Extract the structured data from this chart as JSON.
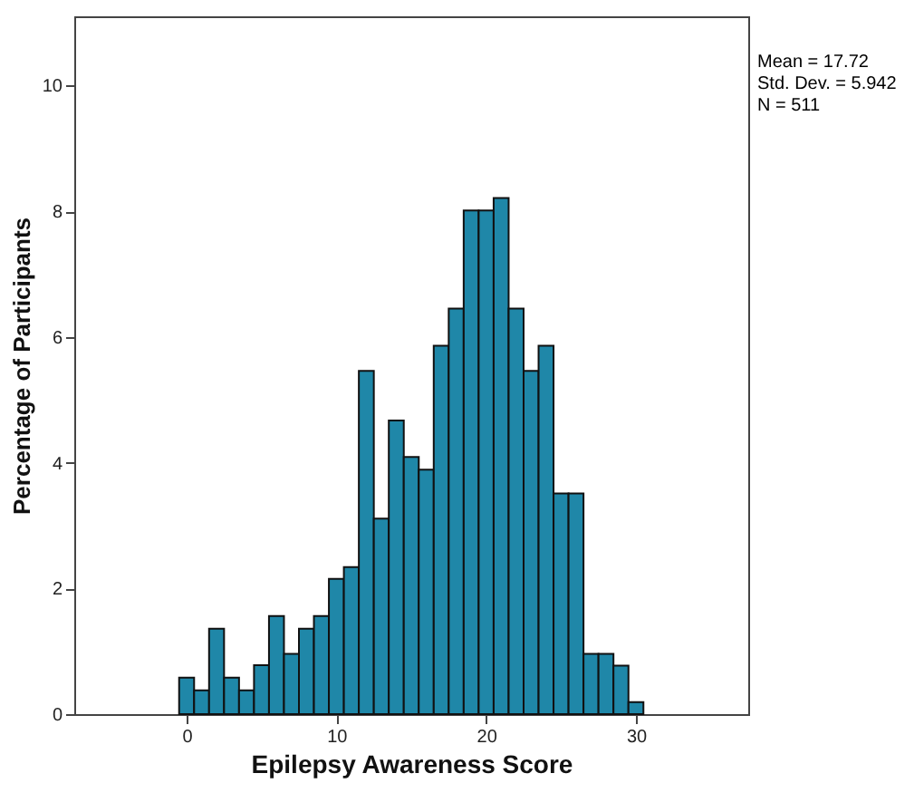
{
  "chart_data": {
    "type": "histogram",
    "xlabel": "Epilepsy Awareness Score",
    "ylabel": "Percentage of Participants",
    "bins": [
      -0.5,
      0.5,
      1.5,
      2.5,
      3.5,
      4.5,
      5.5,
      6.5,
      7.5,
      8.5,
      9.5,
      10.5,
      11.5,
      12.5,
      13.5,
      14.5,
      15.5,
      16.5,
      17.5,
      18.5,
      19.5,
      20.5,
      21.5,
      22.5,
      23.5,
      24.5,
      25.5,
      26.5,
      27.5,
      28.5,
      29.5,
      30.5
    ],
    "values": [
      0.58,
      0.38,
      1.36,
      0.58,
      0.38,
      0.78,
      1.56,
      0.96,
      1.36,
      1.56,
      2.15,
      2.34,
      5.46,
      3.11,
      4.67,
      4.09,
      3.89,
      5.86,
      6.45,
      8.01,
      8.01,
      8.21,
      6.45,
      5.46,
      5.86,
      3.51,
      3.51,
      0.96,
      0.96,
      0.77,
      0.19
    ],
    "color": "#1f87a8",
    "xlim": [
      -7.5,
      37.5
    ],
    "xticks": [
      0,
      10,
      20,
      30
    ],
    "ylim": [
      0,
      11.1
    ],
    "yticks": [
      0,
      2,
      4,
      6,
      8,
      10
    ],
    "annotations": [
      "Mean = 17.72",
      "Std. Dev. = 5.942",
      "N = 511"
    ]
  }
}
